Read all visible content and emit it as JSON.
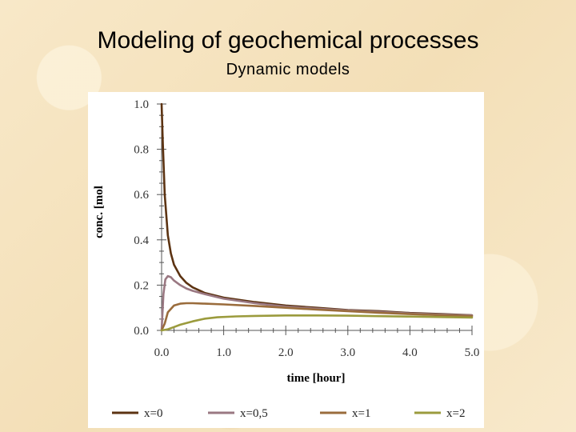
{
  "slide": {
    "title": "Modeling of geochemical processes",
    "subtitle": "Dynamic models"
  },
  "chart_data": {
    "type": "line",
    "xlabel": "time [hour]",
    "ylabel": "conc. [mol",
    "xlim": [
      0,
      5
    ],
    "ylim": [
      0,
      1
    ],
    "x_ticks": [
      "0.0",
      "1.0",
      "2.0",
      "3.0",
      "4.0",
      "5.0"
    ],
    "y_ticks": [
      "0.0",
      "0.2",
      "0.4",
      "0.6",
      "0.8",
      "1.0"
    ],
    "grid": false,
    "legend_placement": "bottom",
    "series": [
      {
        "name": "x=0",
        "color": "#5c3312",
        "x": [
          0,
          0.02,
          0.05,
          0.1,
          0.15,
          0.2,
          0.3,
          0.4,
          0.5,
          0.7,
          1.0,
          1.5,
          2.0,
          2.5,
          3.0,
          3.5,
          4.0,
          4.5,
          5.0
        ],
        "y": [
          1.0,
          0.82,
          0.6,
          0.42,
          0.34,
          0.29,
          0.24,
          0.21,
          0.19,
          0.165,
          0.145,
          0.125,
          0.11,
          0.1,
          0.09,
          0.085,
          0.077,
          0.072,
          0.067
        ]
      },
      {
        "name": "x=0,5",
        "color": "#9a7882",
        "x": [
          0,
          0.03,
          0.06,
          0.1,
          0.15,
          0.2,
          0.3,
          0.4,
          0.5,
          0.7,
          1.0,
          1.5,
          2.0,
          2.5,
          3.0,
          3.5,
          4.0,
          4.5,
          5.0
        ],
        "y": [
          0,
          0.16,
          0.225,
          0.24,
          0.235,
          0.22,
          0.2,
          0.185,
          0.175,
          0.16,
          0.14,
          0.12,
          0.105,
          0.096,
          0.088,
          0.082,
          0.075,
          0.07,
          0.066
        ]
      },
      {
        "name": "x=1",
        "color": "#9a6c3c",
        "x": [
          0,
          0.05,
          0.1,
          0.2,
          0.3,
          0.4,
          0.5,
          0.7,
          1.0,
          1.5,
          2.0,
          2.5,
          3.0,
          3.5,
          4.0,
          4.5,
          5.0
        ],
        "y": [
          0,
          0.03,
          0.08,
          0.11,
          0.118,
          0.12,
          0.12,
          0.118,
          0.115,
          0.108,
          0.1,
          0.092,
          0.085,
          0.078,
          0.072,
          0.067,
          0.063
        ]
      },
      {
        "name": "x=2",
        "color": "#9b9b3d",
        "x": [
          0,
          0.1,
          0.2,
          0.3,
          0.5,
          0.7,
          0.9,
          1.2,
          1.5,
          2.0,
          2.5,
          3.0,
          3.5,
          4.0,
          4.5,
          5.0
        ],
        "y": [
          0,
          0.005,
          0.015,
          0.025,
          0.04,
          0.052,
          0.058,
          0.062,
          0.064,
          0.066,
          0.066,
          0.065,
          0.063,
          0.061,
          0.059,
          0.057
        ]
      }
    ]
  }
}
